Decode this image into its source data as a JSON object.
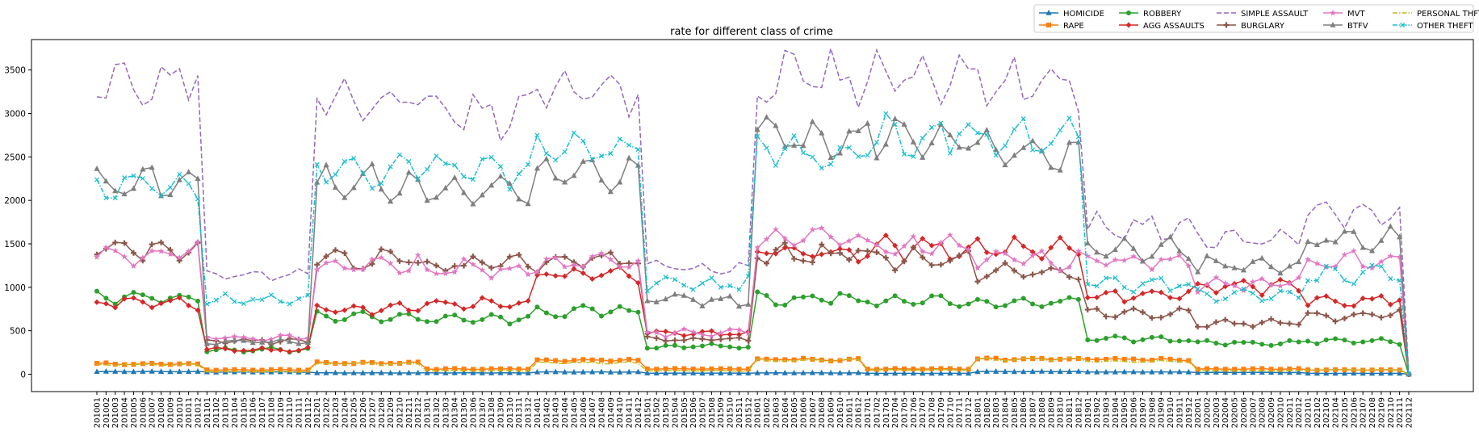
{
  "chart_data": {
    "type": "line",
    "title": "rate for different class of crime",
    "xlabel": "",
    "ylabel": "",
    "ylim": [
      -200,
      3850
    ],
    "yticks": [
      0,
      500,
      1000,
      1500,
      2000,
      2500,
      3000,
      3500
    ],
    "grid": false,
    "legend_position": "top-right",
    "x_start": "201001",
    "x_end": "202112",
    "series": [
      {
        "name": "HOMICIDE",
        "color": "#1f77b4",
        "dash": "solid",
        "marker": "triangle",
        "segments": [
          30,
          25,
          15,
          15,
          25,
          12,
          15,
          10,
          30,
          25,
          20,
          10
        ]
      },
      {
        "name": "RAPE",
        "color": "#ff7f0e",
        "dash": "solid",
        "marker": "square",
        "segments": [
          120,
          50,
          130,
          60,
          160,
          60,
          170,
          60,
          175,
          170,
          60,
          50
        ]
      },
      {
        "name": "ROBBERY",
        "color": "#2ca02c",
        "dash": "solid",
        "marker": "circle",
        "segments": [
          890,
          280,
          660,
          630,
          720,
          320,
          870,
          840,
          820,
          400,
          360,
          380
        ]
      },
      {
        "name": "AGG ASSAULTS",
        "color": "#d62728",
        "dash": "solid",
        "marker": "diamond",
        "segments": [
          820,
          280,
          750,
          800,
          1150,
          480,
          1400,
          1450,
          1460,
          900,
          1000,
          850
        ]
      },
      {
        "name": "SIMPLE ASSAULT",
        "color": "#9467bd",
        "dash": "dashed",
        "marker": "none",
        "segments": [
          3380,
          1150,
          3150,
          3000,
          3250,
          1220,
          3400,
          3450,
          3350,
          1700,
          1550,
          1850
        ]
      },
      {
        "name": "BURGLARY",
        "color": "#8c564b",
        "dash": "solid",
        "marker": "plus",
        "segments": [
          1430,
          380,
          1320,
          1250,
          1300,
          400,
          1380,
          1330,
          1160,
          700,
          600,
          680
        ]
      },
      {
        "name": "MVT",
        "color": "#e377c2",
        "dash": "solid",
        "marker": "star",
        "segments": [
          1390,
          420,
          1250,
          1200,
          1280,
          480,
          1560,
          1460,
          1320,
          1300,
          1050,
          1300
        ]
      },
      {
        "name": "BTFV",
        "color": "#7f7f7f",
        "dash": "solid",
        "marker": "triangle",
        "segments": [
          2200,
          380,
          2200,
          2100,
          2300,
          850,
          2700,
          2750,
          2600,
          1450,
          1250,
          1550
        ]
      },
      {
        "name": "PERSONAL THFT",
        "color": "#bcbd22",
        "dash": "dashdot",
        "marker": "none",
        "segments": [
          110,
          30,
          120,
          40,
          130,
          40,
          160,
          50,
          170,
          150,
          40,
          50
        ]
      },
      {
        "name": "OTHER THEFT",
        "color": "#17becf",
        "dash": "dashdot",
        "marker": "x",
        "segments": [
          2150,
          850,
          2350,
          2350,
          2600,
          1050,
          2550,
          2750,
          2700,
          1050,
          900,
          1150
        ]
      }
    ]
  }
}
